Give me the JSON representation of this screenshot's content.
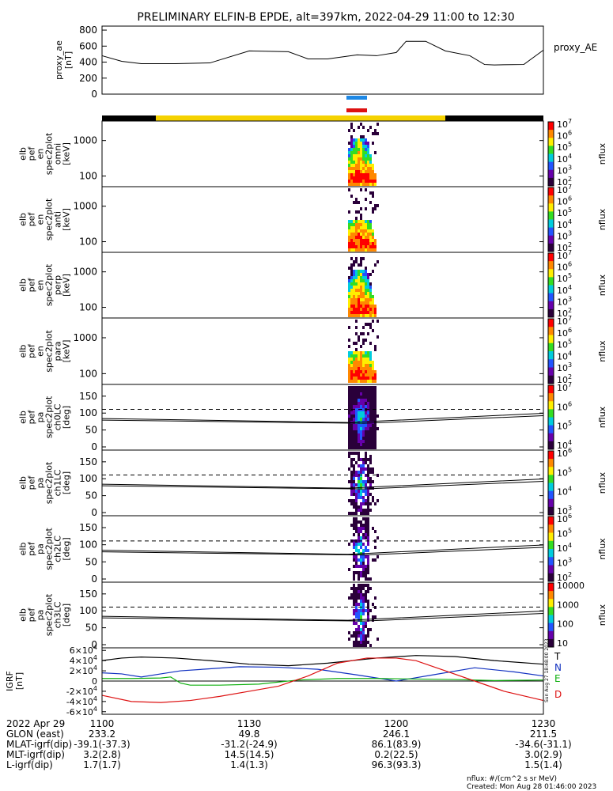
{
  "title": "PRELIMINARY ELFIN-B EPDE, alt=397km, 2022-04-29 11:00 to 12:30",
  "colors": {
    "axis": "#000000",
    "bar_blue": "#1e88e5",
    "bar_red": "#dd1111",
    "strip_yellow": "#f5d200",
    "strip_black": "#000000"
  },
  "chart_data": [
    {
      "type": "line",
      "name": "proxy_ae",
      "ylabel_lines": [
        "proxy_ae",
        "[nT]"
      ],
      "legend": "proxy_AE",
      "ylim": [
        0,
        850
      ],
      "yticks": [
        0,
        200,
        400,
        600,
        800
      ],
      "x_minutes": [
        0,
        4,
        8,
        15,
        22,
        30,
        38,
        42,
        46,
        52,
        56,
        60,
        62,
        66,
        70,
        75,
        78,
        80,
        86,
        90
      ],
      "values": [
        480,
        410,
        380,
        380,
        390,
        540,
        530,
        440,
        440,
        490,
        480,
        520,
        660,
        660,
        540,
        480,
        370,
        365,
        370,
        550
      ]
    },
    {
      "type": "spectrogram",
      "name": "omni",
      "ylabel_lines": [
        "elb",
        "pef",
        "en",
        "spec2plot",
        "omni",
        "[keV]"
      ],
      "yscale": "log",
      "ytick_labels": [
        "100",
        "1000"
      ],
      "ytick_values": [
        100,
        1000
      ],
      "colorbar": {
        "label": "nflux",
        "tick_labels": [
          "10",
          "10",
          "10",
          "10",
          "10",
          "10"
        ],
        "tick_exponents": [
          "2",
          "3",
          "4",
          "5",
          "6",
          "7"
        ]
      }
    },
    {
      "type": "spectrogram",
      "name": "anti",
      "ylabel_lines": [
        "elb",
        "pef",
        "en",
        "spec2plot",
        "anti",
        "[keV]"
      ],
      "yscale": "log",
      "ytick_labels": [
        "100",
        "1000"
      ],
      "ytick_values": [
        100,
        1000
      ],
      "colorbar": {
        "label": "nflux",
        "tick_labels": [
          "10",
          "10",
          "10",
          "10",
          "10",
          "10"
        ],
        "tick_exponents": [
          "2",
          "3",
          "4",
          "5",
          "6",
          "7"
        ]
      }
    },
    {
      "type": "spectrogram",
      "name": "perp",
      "ylabel_lines": [
        "elb",
        "pef",
        "en",
        "spec2plot",
        "perp",
        "[keV]"
      ],
      "yscale": "log",
      "ytick_labels": [
        "100",
        "1000"
      ],
      "ytick_values": [
        100,
        1000
      ],
      "colorbar": {
        "label": "nflux",
        "tick_labels": [
          "10",
          "10",
          "10",
          "10",
          "10",
          "10"
        ],
        "tick_exponents": [
          "2",
          "3",
          "4",
          "5",
          "6",
          "7"
        ]
      }
    },
    {
      "type": "spectrogram",
      "name": "para",
      "ylabel_lines": [
        "elb",
        "pef",
        "en",
        "spec2plot",
        "para",
        "[keV]"
      ],
      "yscale": "log",
      "ytick_labels": [
        "100",
        "1000"
      ],
      "ytick_values": [
        100,
        1000
      ],
      "colorbar": {
        "label": "nflux",
        "tick_labels": [
          "10",
          "10",
          "10",
          "10",
          "10",
          "10"
        ],
        "tick_exponents": [
          "2",
          "3",
          "4",
          "5",
          "6",
          "7"
        ]
      }
    },
    {
      "type": "spectrogram",
      "name": "ch0LC",
      "ylabel_lines": [
        "elb",
        "pef",
        "pa",
        "spec2plot",
        "ch0LC",
        "[deg]"
      ],
      "yscale": "linear",
      "ylim": [
        0,
        180
      ],
      "ytick_labels": [
        "0",
        "50",
        "100",
        "150"
      ],
      "ytick_values": [
        0,
        50,
        100,
        150
      ],
      "colorbar": {
        "label": "nflux",
        "tick_labels": [
          "10",
          "10",
          "10",
          "10"
        ],
        "tick_exponents": [
          "4",
          "5",
          "6",
          "7"
        ]
      }
    },
    {
      "type": "spectrogram",
      "name": "ch1LC",
      "ylabel_lines": [
        "elb",
        "pef",
        "pa",
        "spec2plot",
        "ch1LC",
        "[deg]"
      ],
      "yscale": "linear",
      "ylim": [
        0,
        180
      ],
      "ytick_labels": [
        "0",
        "50",
        "100",
        "150"
      ],
      "ytick_values": [
        0,
        50,
        100,
        150
      ],
      "colorbar": {
        "label": "nflux",
        "tick_labels": [
          "10",
          "10",
          "10",
          "10"
        ],
        "tick_exponents": [
          "3",
          "4",
          "5",
          "6"
        ]
      }
    },
    {
      "type": "spectrogram",
      "name": "ch2LC",
      "ylabel_lines": [
        "elb",
        "pef",
        "pa",
        "spec2plot",
        "ch2LC",
        "[deg]"
      ],
      "yscale": "linear",
      "ylim": [
        0,
        180
      ],
      "ytick_labels": [
        "0",
        "50",
        "100",
        "150"
      ],
      "ytick_values": [
        0,
        50,
        100,
        150
      ],
      "colorbar": {
        "label": "nflux",
        "tick_labels": [
          "10",
          "10",
          "10",
          "10",
          "10"
        ],
        "tick_exponents": [
          "2",
          "3",
          "4",
          "5",
          "6"
        ]
      }
    },
    {
      "type": "spectrogram",
      "name": "ch3LC",
      "ylabel_lines": [
        "elb",
        "pef",
        "pa",
        "spec2plot",
        "ch3LC",
        "[deg]"
      ],
      "yscale": "linear",
      "ylim": [
        0,
        180
      ],
      "ytick_labels": [
        "0",
        "50",
        "100",
        "150"
      ],
      "ytick_values": [
        0,
        50,
        100,
        150
      ],
      "colorbar": {
        "label": "nflux",
        "tick_labels": [
          "10",
          "100",
          "1000",
          "10000"
        ],
        "tick_exponents": [
          "",
          "",
          "",
          ""
        ]
      }
    },
    {
      "type": "line",
      "name": "IGRF",
      "ylabel_lines": [
        "IGRF",
        "[nT]"
      ],
      "ylim": [
        -65000,
        65000
      ],
      "ytick_values": [
        -60000,
        -40000,
        -20000,
        0,
        20000,
        40000,
        60000
      ],
      "ytick_mantissa": [
        "-6",
        "-4",
        "-2",
        "0",
        "2",
        "4",
        "6"
      ],
      "ytick_exponent": "4",
      "series": [
        {
          "name": "T",
          "color": "#000000",
          "x_minutes": [
            0,
            4,
            8,
            15,
            22,
            30,
            38,
            46,
            56,
            64,
            72,
            80,
            90
          ],
          "values": [
            40000,
            45000,
            47000,
            45000,
            40000,
            33000,
            30000,
            35000,
            45000,
            50000,
            48000,
            40000,
            33000
          ]
        },
        {
          "name": "N",
          "color": "#1030c0",
          "x_minutes": [
            0,
            4,
            8,
            12,
            16,
            22,
            28,
            36,
            44,
            52,
            60,
            68,
            76,
            84,
            90
          ],
          "values": [
            16000,
            14000,
            8000,
            14000,
            20000,
            24000,
            28000,
            27000,
            23000,
            12000,
            0,
            13000,
            26000,
            18000,
            10000
          ]
        },
        {
          "name": "E",
          "color": "#10b010",
          "x_minutes": [
            0,
            6,
            12,
            14,
            16,
            18,
            24,
            32,
            40,
            48,
            56,
            64,
            72,
            80,
            90
          ],
          "values": [
            5000,
            5000,
            6000,
            8000,
            -4000,
            -8000,
            -8000,
            -6000,
            2000,
            5000,
            5000,
            4000,
            3000,
            1000,
            2000
          ]
        },
        {
          "name": "D",
          "color": "#dd1111",
          "x_minutes": [
            0,
            6,
            12,
            18,
            24,
            30,
            36,
            42,
            48,
            54,
            60,
            64,
            70,
            76,
            82,
            90
          ],
          "values": [
            -28000,
            -40000,
            -42000,
            -38000,
            -30000,
            -20000,
            -10000,
            10000,
            35000,
            45000,
            45000,
            40000,
            20000,
            0,
            -20000,
            -38000
          ]
        }
      ]
    }
  ],
  "side_text": "Sun Aug 27 18:48:00 2023",
  "footer": {
    "rows": [
      {
        "label": "2022 Apr 29",
        "values": [
          "1100",
          "1130",
          "1200",
          "1230"
        ]
      },
      {
        "label": "GLON (east)",
        "values": [
          "233.2",
          "49.8",
          "246.1",
          "211.5"
        ]
      },
      {
        "label": "MLAT-igrf(dip)",
        "values": [
          "-39.1(-37.3)",
          "-31.2(-24.9)",
          "86.1(83.9)",
          "-34.6(-31.1)"
        ]
      },
      {
        "label": "MLT-igrf(dip)",
        "values": [
          "3.2(2.8)",
          "14.5(14.5)",
          "0.2(22.5)",
          "3.0(2.9)"
        ]
      },
      {
        "label": "L-igrf(dip)",
        "values": [
          "1.7(1.7)",
          "1.4(1.3)",
          "96.3(93.3)",
          "1.5(1.4)"
        ]
      }
    ],
    "units_note": "nflux: #/(cm^2 s sr MeV)",
    "created": "Created: Mon Aug 28 01:46:00 2023"
  }
}
